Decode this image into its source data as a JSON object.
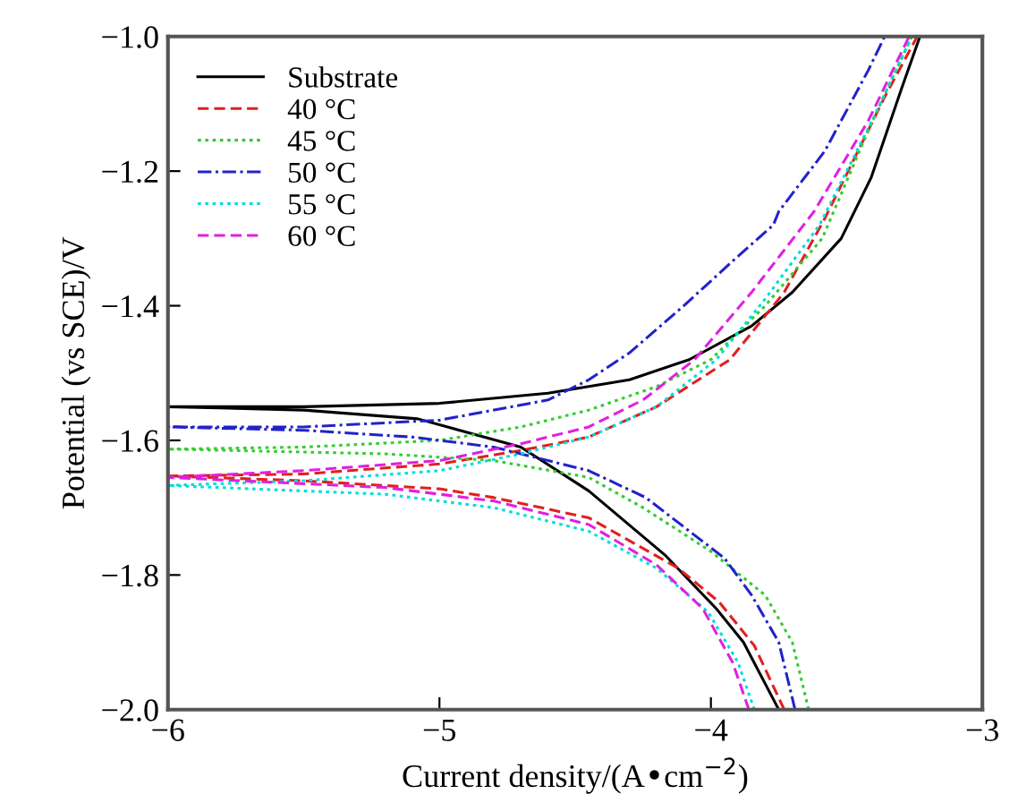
{
  "chart_data": {
    "type": "line",
    "xlabel": "Current density/(A•cm$^{−2}$)",
    "ylabel": "Potential (vs SCE)/V",
    "xlim": [
      -6,
      -3
    ],
    "ylim": [
      -2.0,
      -1.0
    ],
    "xticks": [
      {
        "value": -6,
        "label": "−6"
      },
      {
        "value": -5,
        "label": "−5"
      },
      {
        "value": -4,
        "label": "−4"
      },
      {
        "value": -3,
        "label": "−3"
      }
    ],
    "yticks": [
      {
        "value": -2.0,
        "label": "−2.0"
      },
      {
        "value": -1.8,
        "label": "−1.8"
      },
      {
        "value": -1.6,
        "label": "−1.6"
      },
      {
        "value": -1.4,
        "label": "−1.4"
      },
      {
        "value": -1.2,
        "label": "−1.2"
      },
      {
        "value": -1.0,
        "label": "−1.0"
      }
    ],
    "grid": false,
    "legend": "top left",
    "series": [
      {
        "name": "Substrate",
        "color": "#000000",
        "line_style": "solid",
        "x": [
          -3.75,
          -3.88,
          -3.98,
          -4.17,
          -4.45,
          -4.7,
          -5.08,
          -5.5,
          -6,
          -5.5,
          -5.0,
          -4.6,
          -4.3,
          -4.08,
          -3.85,
          -3.7,
          -3.52,
          -3.41,
          -3.3,
          -3.23
        ],
        "values": [
          -2.0,
          -1.9,
          -1.85,
          -1.77,
          -1.675,
          -1.61,
          -1.568,
          -1.555,
          -1.55,
          -1.55,
          -1.545,
          -1.53,
          -1.51,
          -1.48,
          -1.43,
          -1.38,
          -1.3,
          -1.21,
          -1.08,
          -1.0
        ]
      },
      {
        "name": "40 °C",
        "color": "#e02020",
        "line_style": "dashed",
        "x": [
          -3.73,
          -3.84,
          -3.97,
          -4.12,
          -4.45,
          -4.8,
          -5.0,
          -5.5,
          -6,
          -5.5,
          -5.0,
          -4.7,
          -4.45,
          -4.2,
          -3.93,
          -3.73,
          -3.58,
          -3.36,
          -3.24
        ],
        "values": [
          -2.0,
          -1.905,
          -1.84,
          -1.79,
          -1.715,
          -1.685,
          -1.672,
          -1.66,
          -1.653,
          -1.65,
          -1.635,
          -1.615,
          -1.595,
          -1.55,
          -1.48,
          -1.38,
          -1.27,
          -1.09,
          -1.0
        ]
      },
      {
        "name": "45 °C",
        "color": "#33cc33",
        "line_style": "dotted",
        "x": [
          -3.64,
          -3.7,
          -3.8,
          -4.0,
          -4.25,
          -4.45,
          -4.8,
          -5.2,
          -6,
          -5.5,
          -5.0,
          -4.7,
          -4.45,
          -4.2,
          -4.0,
          -3.8,
          -3.59,
          -3.41,
          -3.26
        ],
        "values": [
          -2.0,
          -1.9,
          -1.83,
          -1.765,
          -1.7,
          -1.655,
          -1.63,
          -1.62,
          -1.613,
          -1.61,
          -1.6,
          -1.58,
          -1.555,
          -1.52,
          -1.48,
          -1.4,
          -1.3,
          -1.13,
          -1.0
        ]
      },
      {
        "name": "50 °C",
        "color": "#2222cc",
        "line_style": "dashdot",
        "x": [
          -3.69,
          -3.75,
          -3.85,
          -3.95,
          -4.24,
          -4.45,
          -4.8,
          -5.1,
          -5.5,
          -6,
          -5.5,
          -5.0,
          -4.6,
          -4.45,
          -4.3,
          -4.1,
          -3.91,
          -3.77,
          -3.75,
          -3.58,
          -3.42,
          -3.36
        ],
        "values": [
          -2.0,
          -1.9,
          -1.83,
          -1.775,
          -1.685,
          -1.645,
          -1.61,
          -1.595,
          -1.585,
          -1.58,
          -1.58,
          -1.57,
          -1.54,
          -1.51,
          -1.47,
          -1.4,
          -1.33,
          -1.28,
          -1.26,
          -1.17,
          -1.05,
          -1.0
        ]
      },
      {
        "name": "55 °C",
        "color": "#00dddd",
        "line_style": "dotted",
        "x": [
          -3.84,
          -3.9,
          -4.01,
          -4.2,
          -4.45,
          -4.8,
          -5.2,
          -6,
          -5.5,
          -5.0,
          -4.7,
          -4.45,
          -4.2,
          -3.98,
          -3.8,
          -3.6,
          -3.4,
          -3.26
        ],
        "values": [
          -2.0,
          -1.93,
          -1.855,
          -1.79,
          -1.735,
          -1.7,
          -1.68,
          -1.667,
          -1.66,
          -1.645,
          -1.62,
          -1.595,
          -1.55,
          -1.48,
          -1.39,
          -1.28,
          -1.12,
          -1.0
        ]
      },
      {
        "name": "60 °C",
        "color": "#e020e0",
        "line_style": "dashed",
        "x": [
          -3.86,
          -3.92,
          -4.03,
          -4.2,
          -4.45,
          -4.8,
          -5.2,
          -6,
          -5.5,
          -5.0,
          -4.7,
          -4.45,
          -4.25,
          -4.06,
          -3.85,
          -3.62,
          -3.42,
          -3.27
        ],
        "values": [
          -2.0,
          -1.93,
          -1.85,
          -1.785,
          -1.725,
          -1.69,
          -1.67,
          -1.655,
          -1.645,
          -1.63,
          -1.605,
          -1.58,
          -1.54,
          -1.48,
          -1.38,
          -1.26,
          -1.125,
          -1.0
        ]
      }
    ]
  }
}
